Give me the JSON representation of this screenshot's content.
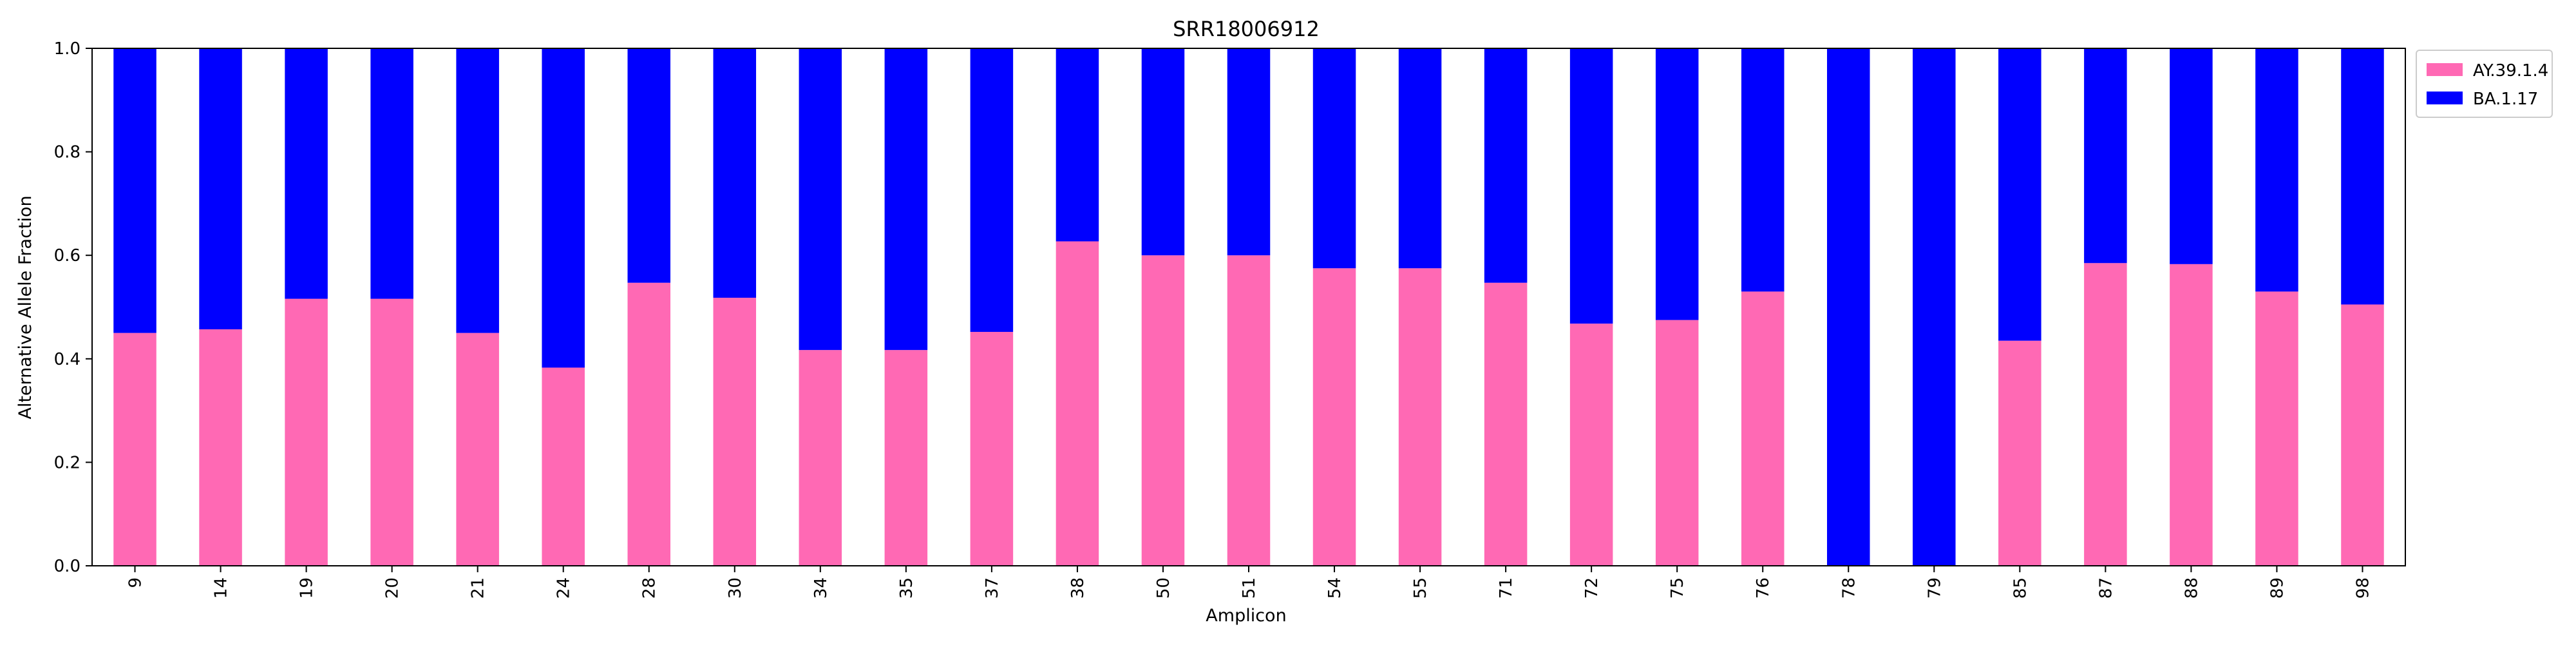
{
  "chart_data": {
    "type": "bar",
    "stacked": true,
    "title": "SRR18006912",
    "xlabel": "Amplicon",
    "ylabel": "Alternative Allele Fraction",
    "ylim": [
      0,
      1
    ],
    "yticks": [
      "0.0",
      "0.2",
      "0.4",
      "0.6",
      "0.8",
      "1.0"
    ],
    "grid": false,
    "legend_position": "outside top-right",
    "categories": [
      "9",
      "14",
      "19",
      "20",
      "21",
      "24",
      "28",
      "30",
      "34",
      "35",
      "37",
      "38",
      "50",
      "51",
      "54",
      "55",
      "71",
      "72",
      "75",
      "76",
      "78",
      "79",
      "85",
      "87",
      "88",
      "89",
      "98"
    ],
    "series": [
      {
        "name": "AY.39.1.4",
        "color": "#ff69b4",
        "values": [
          0.45,
          0.457,
          0.516,
          0.516,
          0.45,
          0.383,
          0.547,
          0.518,
          0.417,
          0.417,
          0.452,
          0.627,
          0.6,
          0.6,
          0.575,
          0.575,
          0.547,
          0.468,
          0.475,
          0.53,
          0.0,
          0.0,
          0.435,
          0.585,
          0.583,
          0.53,
          0.505
        ]
      },
      {
        "name": "BA.1.17",
        "color": "#0000ff",
        "values": [
          0.55,
          0.543,
          0.484,
          0.484,
          0.55,
          0.617,
          0.453,
          0.482,
          0.583,
          0.583,
          0.548,
          0.373,
          0.4,
          0.4,
          0.425,
          0.425,
          0.453,
          0.532,
          0.525,
          0.47,
          1.0,
          1.0,
          0.565,
          0.415,
          0.417,
          0.47,
          0.495
        ]
      }
    ]
  }
}
